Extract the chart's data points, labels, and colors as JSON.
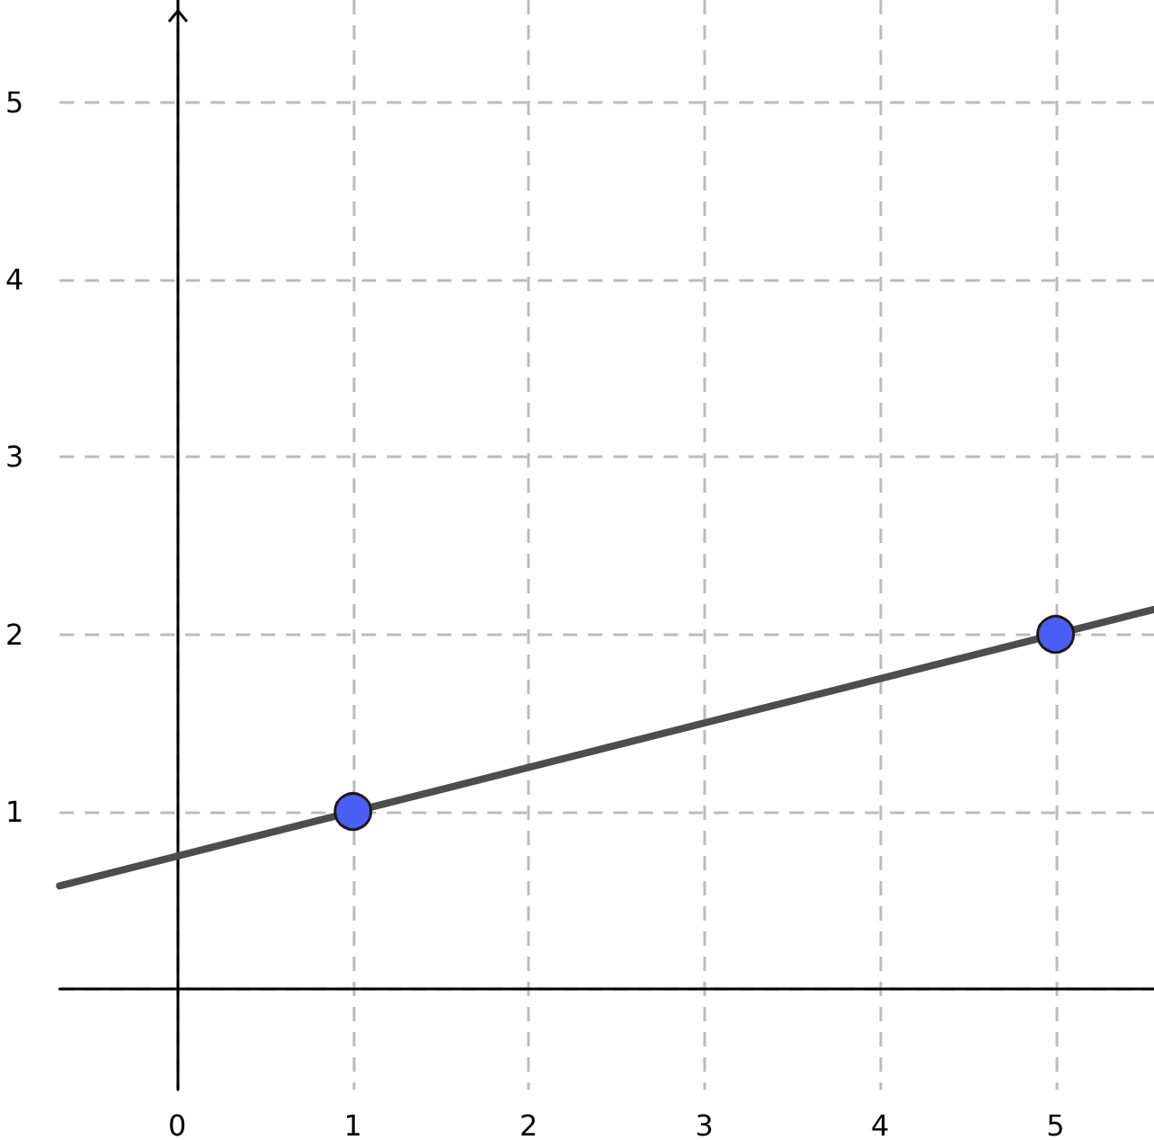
{
  "chart_data": {
    "type": "scatter",
    "xlim": [
      -0.67,
      5.56
    ],
    "ylim": [
      -0.57,
      5.58
    ],
    "xticks": [
      0,
      1,
      2,
      3,
      4,
      5
    ],
    "yticks": [
      {
        "value": 0,
        "label": null
      },
      1,
      2,
      3,
      4,
      5
    ],
    "grid": true,
    "series": [
      {
        "type": "line",
        "color": "#4d4d4d",
        "marker": "none",
        "x": [
          -0.67,
          5.56
        ],
        "values": [
          0.58,
          2.14
        ]
      },
      {
        "color": "#4a5df5",
        "marker": "circle",
        "x": [
          1,
          5
        ],
        "values": [
          1,
          2
        ]
      }
    ]
  }
}
